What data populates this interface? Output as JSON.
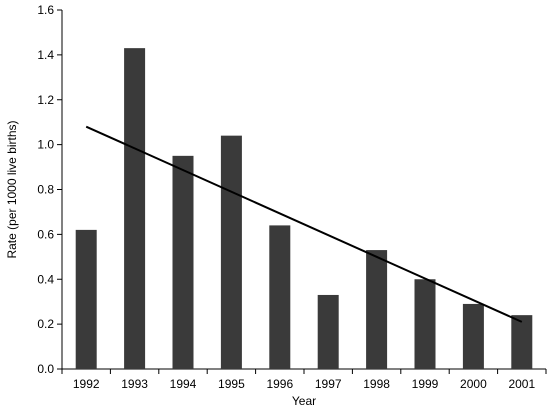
{
  "chart_data": {
    "type": "bar",
    "title": "",
    "xlabel": "Year",
    "ylabel": "Rate (per 1000 live births)",
    "categories": [
      "1992",
      "1993",
      "1994",
      "1995",
      "1996",
      "1997",
      "1998",
      "1999",
      "2000",
      "2001"
    ],
    "values": [
      0.62,
      1.43,
      0.95,
      1.04,
      0.64,
      0.33,
      0.53,
      0.4,
      0.29,
      0.24
    ],
    "ylim": [
      0,
      1.6
    ],
    "yticks": [
      "0.0",
      "0.2",
      "0.4",
      "0.6",
      "0.8",
      "1.0",
      "1.2",
      "1.4",
      "1.6"
    ],
    "grid": false,
    "legend": "none",
    "bar_color": "#3a3a3a",
    "trendline": {
      "type": "linear",
      "start": {
        "x": "1992",
        "y": 1.08
      },
      "end": {
        "x": "2001",
        "y": 0.21
      }
    }
  }
}
